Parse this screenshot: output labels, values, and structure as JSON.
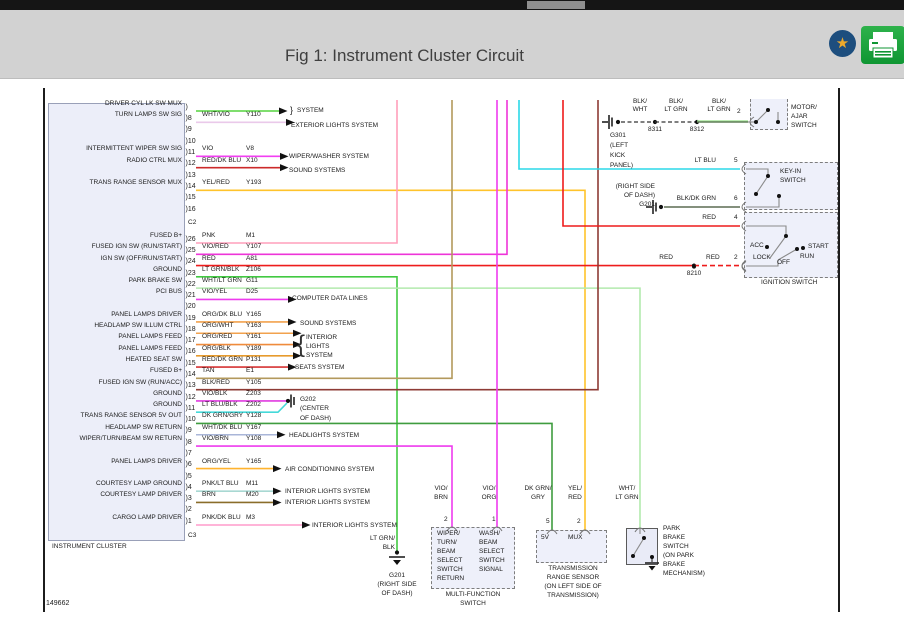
{
  "header": {
    "title": "Fig 1: Instrument Cluster Circuit"
  },
  "figure_number": "149662",
  "glyphs": {
    "brace_close": "}",
    "brace_open": "{",
    "star": "★"
  },
  "ui_colors": {
    "header_bg": "#d2d2d2",
    "print_button_green": "#1a9e38",
    "star_circle_blue": "#1d4e7e",
    "star_gold": "#eca92c"
  },
  "cluster": {
    "title": "INSTRUMENT CLUSTER",
    "c2": {
      "label": "C2",
      "rows": [
        {
          "pin": "",
          "label": "DRIVER CYL LK SW MUX",
          "wire": "",
          "code": "",
          "system": "SYSTEM",
          "color": "#55d43e"
        },
        {
          "pin": "8",
          "label": "TURN LAMPS SW SIG",
          "wire": "WHT/VIO",
          "code": "Y110",
          "system": "EXTERIOR LIGHTS SYSTEM",
          "color": "#eac9ea"
        },
        {
          "pin": "9"
        },
        {
          "pin": "10"
        },
        {
          "pin": "11",
          "label": "INTERMITTENT WIPER SW SIG",
          "wire": "VIO",
          "code": "V8",
          "system": "WIPER/WASHER SYSTEM",
          "color": "#f23ef2"
        },
        {
          "pin": "12",
          "label": "RADIO CTRL MUX",
          "wire": "RED/DK BLU",
          "code": "X10",
          "system": "SOUND SYSTEMS",
          "color": "#cc2a2a"
        },
        {
          "pin": "13"
        },
        {
          "pin": "14",
          "label": "TRANS RANGE SENSOR MUX",
          "wire": "YEL/RED",
          "code": "Y193",
          "color": "#ffc32b"
        },
        {
          "pin": "15"
        },
        {
          "pin": "16"
        }
      ]
    },
    "c3": {
      "label": "C3",
      "rows": [
        {
          "pin": "26",
          "label": "FUSED B+",
          "wire": "PNK",
          "code": "M1",
          "color": "#ff9fbb"
        },
        {
          "pin": "25",
          "label": "FUSED IGN SW (RUN/START)",
          "wire": "VIO/RED",
          "code": "Y107",
          "color": "#ee34d8"
        },
        {
          "pin": "24",
          "label": "IGN SW (OFF/RUN/START)",
          "wire": "RED",
          "code": "A81",
          "color": "#ee1c1c"
        },
        {
          "pin": "23",
          "label": "GROUND",
          "wire": "LT GRN/BLK",
          "code": "Z106",
          "color": "#42c942"
        },
        {
          "pin": "22",
          "label": "PARK BRAKE SW",
          "wire": "WHT/LT GRN",
          "code": "G11",
          "color": "#b2e9ad"
        },
        {
          "pin": "21",
          "label": "PCI BUS",
          "wire": "VIO/YEL",
          "code": "D25",
          "system": "COMPUTER DATA LINES",
          "color": "#ee3bee"
        },
        {
          "pin": "20"
        },
        {
          "pin": "19",
          "label": "PANEL LAMPS DRIVER",
          "wire": "ORG/DK BLU",
          "code": "Y165",
          "system": "SOUND SYSTEMS",
          "color": "#f2a24e"
        },
        {
          "pin": "18",
          "label": "HEADLAMP SW ILLUM CTRL",
          "wire": "ORG/WHT",
          "code": "Y163",
          "color": "#f2a24e"
        },
        {
          "pin": "17",
          "label": "PANEL LAMPS FEED",
          "wire": "ORG/RED",
          "code": "Y161",
          "color": "#ef8b3c"
        },
        {
          "pin": "16",
          "label": "PANEL LAMPS FEED",
          "wire": "ORG/BLK",
          "code": "Y189",
          "color": "#e79b2d"
        },
        {
          "pin": "15",
          "label": "HEATED SEAT SW",
          "wire": "RED/DK GRN",
          "code": "P131",
          "system": "SEATS SYSTEM",
          "color": "#d63434"
        },
        {
          "pin": "14",
          "label": "FUSED B+",
          "wire": "TAN",
          "code": "E1",
          "color": "#b3995c"
        },
        {
          "pin": "13",
          "label": "FUSED IGN SW (RUN/ACC)",
          "wire": "BLK/RED",
          "code": "Y105",
          "color": "#8e3b35"
        },
        {
          "pin": "12",
          "label": "GROUND",
          "wire": "VIO/BLK",
          "code": "Z203",
          "color": "#e13be1"
        },
        {
          "pin": "11",
          "label": "GROUND",
          "wire": "LT BLU/BLK",
          "code": "Z202",
          "color": "#45d9d9"
        },
        {
          "pin": "10",
          "label": "TRANS RANGE SENSOR 5V OUT",
          "wire": "DK GRN/GRY",
          "code": "Y128",
          "color": "#3f9c3f"
        },
        {
          "pin": "9",
          "label": "HEADLAMP SW RETURN",
          "wire": "WHT/DK BLU",
          "code": "Y167",
          "system": "HEADLIGHTS SYSTEM",
          "color": "#a9b6d8"
        },
        {
          "pin": "8",
          "label": "WIPER/TURN/BEAM SW RETURN",
          "wire": "VIO/BRN",
          "code": "Y108",
          "color": "#ee3bee"
        },
        {
          "pin": "7"
        },
        {
          "pin": "6",
          "label": "PANEL LAMPS DRIVER",
          "wire": "ORG/YEL",
          "code": "Y165",
          "system": "AIR CONDITIONING SYSTEM",
          "color": "#ffb32e"
        },
        {
          "pin": "5"
        },
        {
          "pin": "4",
          "label": "COURTESY LAMP GROUND",
          "wire": "PNK/LT BLU",
          "code": "M11",
          "system": "INTERIOR LIGHTS SYSTEM",
          "color": "#a8d8d2"
        },
        {
          "pin": "3",
          "label": "COURTESY LAMP DRIVER",
          "wire": "BRN",
          "code": "M20",
          "system": "INTERIOR LIGHTS SYSTEM",
          "color": "#8a6d2a"
        },
        {
          "pin": "2"
        },
        {
          "pin": "1",
          "label": "CARGO LAMP DRIVER",
          "wire": "PNK/DK BLU",
          "code": "M3",
          "system": "INTERIOR LIGHTS SYSTEM",
          "color": "#ff9ccc"
        }
      ]
    }
  },
  "interior_lights_bracket": [
    "INTERIOR",
    "LIGHTS",
    "SYSTEM"
  ],
  "motor_ajar": {
    "ground_lines": [
      "G301",
      "(LEFT",
      "KICK",
      "PANEL)"
    ],
    "splices": [
      "8311",
      "8312"
    ],
    "wire_labels": [
      [
        "BLK/",
        "WHT"
      ],
      [
        "BLK/",
        "LT GRN"
      ],
      [
        "BLK/",
        "LT GRN"
      ]
    ],
    "pin": "2",
    "name": [
      "MOTOR/",
      "AJAR",
      "SWITCH"
    ]
  },
  "key_in_switch": {
    "name": [
      "KEY-IN",
      "SWITCH"
    ],
    "pin5": {
      "wire": "LT BLU",
      "pin": "5",
      "color": "#2bd9e8"
    },
    "pin6": {
      "wire": "BLK/DK GRN",
      "pin": "6",
      "color": "#5c6b52",
      "ground_lines": [
        "(RIGHT SIDE",
        "OF DASH)",
        "G201"
      ]
    }
  },
  "ignition_switch": {
    "name": "IGNITION SWITCH",
    "positions": [
      "ACC",
      "LOCK",
      "OFF",
      "RUN",
      "START"
    ],
    "pin4": {
      "wire": "RED",
      "pin": "4",
      "color": "#ee1c1c"
    },
    "pin2": {
      "wire": "RED",
      "splice": "8210",
      "wire2": "RED",
      "pin": "2"
    }
  },
  "park_brake_switch": {
    "wire": [
      "WHT/",
      "LT GRN"
    ],
    "name": [
      "PARK",
      "BRAKE",
      "SWITCH",
      "(ON PARK",
      "BRAKE",
      "MECHANISM)"
    ]
  },
  "multi_function_switch": {
    "name": [
      "MULTI-FUNCTION",
      "SWITCH"
    ],
    "pin2": {
      "pin": "2",
      "wire": [
        "VIO/",
        "BRN"
      ],
      "label": [
        "WIPER/",
        "TURN/",
        "BEAM",
        "SELECT",
        "SWITCH",
        "RETURN"
      ]
    },
    "pin1": {
      "pin": "1",
      "wire": [
        "VIO/",
        "ORG"
      ],
      "label": [
        "WASH/",
        "BEAM",
        "SELECT",
        "SWITCH",
        "SIGNAL"
      ],
      "color": "#ee3bee"
    }
  },
  "trans_range_sensor": {
    "name": [
      "TRANSMISSION",
      "RANGE SENSOR",
      "(ON LEFT SIDE OF",
      "TRANSMISSION)"
    ],
    "pin5": {
      "pin": "5",
      "wire": [
        "DK GRN/",
        "GRY"
      ],
      "label": "5V"
    },
    "pin2": {
      "pin": "2",
      "wire": [
        "YEL/",
        "RED"
      ],
      "label": "MUX"
    }
  },
  "g201_bottom": {
    "wire": [
      "LT GRN/",
      "BLK"
    ],
    "lines": [
      "G201",
      "(RIGHT SIDE",
      "OF DASH)"
    ]
  },
  "g202": {
    "lines": [
      "G202",
      "(CENTER",
      "OF DASH)"
    ]
  }
}
